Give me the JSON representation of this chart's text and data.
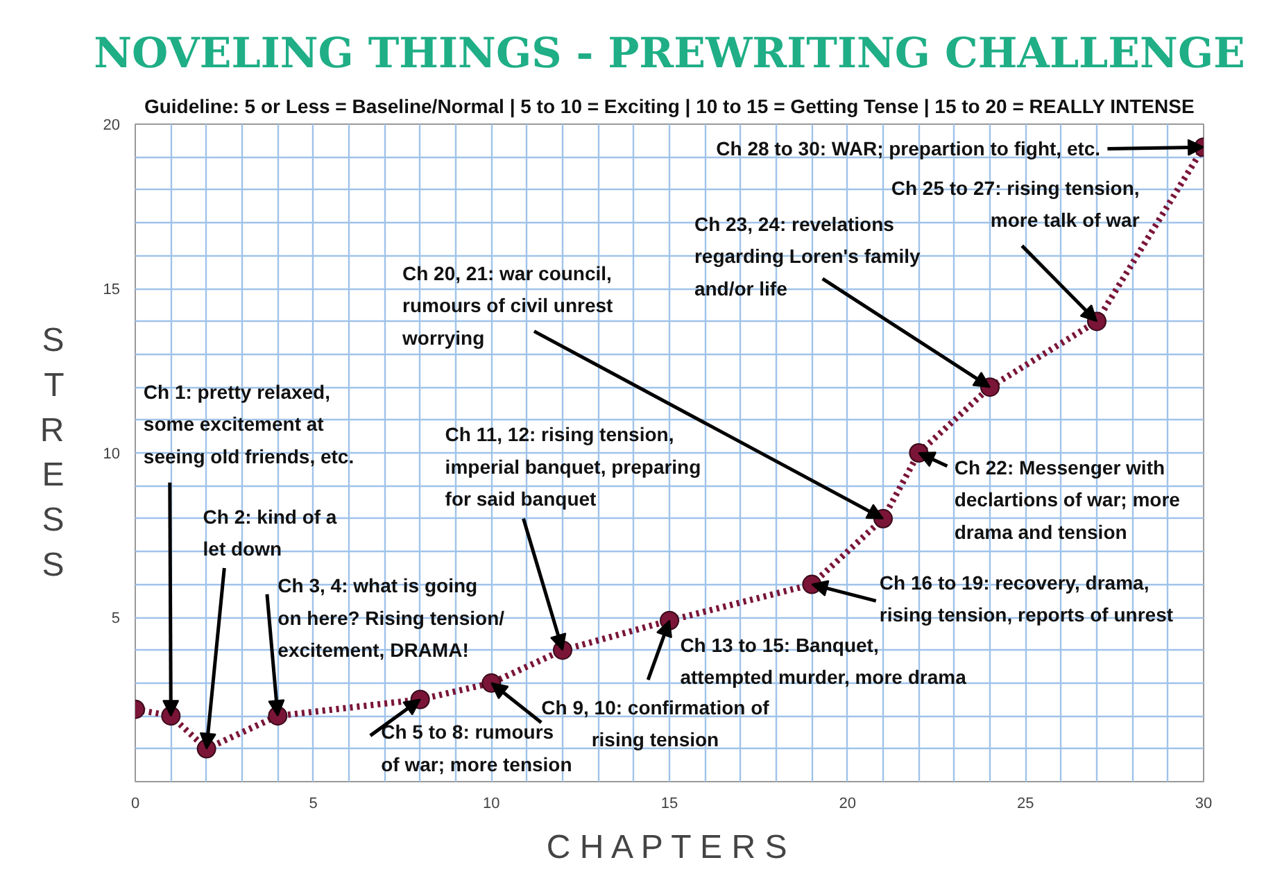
{
  "chart_data": {
    "type": "line",
    "title": "NOVELING THINGS - PREWRITING CHALLENGE",
    "subtitle": "Guideline: 5 or Less = Baseline/Normal | 5 to 10 = Exciting | 10 to 15 = Getting Tense | 15 to 20 = REALLY INTENSE",
    "xlabel": "C H A P T E R S",
    "ylabel": "STRESS",
    "series": [
      {
        "color": "#7a1538",
        "x": [
          0,
          1,
          2,
          4,
          8,
          10,
          12,
          15,
          19,
          21,
          22,
          24,
          27,
          30
        ],
        "values": [
          2.2,
          2,
          1,
          2,
          2.5,
          3,
          4,
          4.9,
          6,
          8,
          10,
          12,
          14,
          19.3
        ]
      }
    ],
    "marker": "circle",
    "line_style": "dotted",
    "grid": true,
    "xlim": [
      0,
      30
    ],
    "ylim": [
      0,
      20
    ],
    "xticks": [
      0,
      {
        "value": 1,
        "label": null
      },
      {
        "value": 2,
        "label": null
      },
      {
        "value": 3,
        "label": null
      },
      {
        "value": 4,
        "label": null
      },
      5,
      {
        "value": 6,
        "label": null
      },
      {
        "value": 7,
        "label": null
      },
      {
        "value": 8,
        "label": null
      },
      {
        "value": 9,
        "label": null
      },
      10,
      {
        "value": 11,
        "label": null
      },
      {
        "value": 12,
        "label": null
      },
      {
        "value": 13,
        "label": null
      },
      {
        "value": 14,
        "label": null
      },
      15,
      {
        "value": 16,
        "label": null
      },
      {
        "value": 17,
        "label": null
      },
      {
        "value": 18,
        "label": null
      },
      {
        "value": 19,
        "label": null
      },
      20,
      {
        "value": 21,
        "label": null
      },
      {
        "value": 22,
        "label": null
      },
      {
        "value": 23,
        "label": null
      },
      {
        "value": 24,
        "label": null
      },
      25,
      {
        "value": 26,
        "label": null
      },
      {
        "value": 27,
        "label": null
      },
      {
        "value": 28,
        "label": null
      },
      {
        "value": 29,
        "label": null
      },
      30
    ],
    "yticks": [
      {
        "value": 1,
        "label": null
      },
      {
        "value": 2,
        "label": null
      },
      {
        "value": 3,
        "label": null
      },
      {
        "value": 4,
        "label": null
      },
      5,
      {
        "value": 6,
        "label": null
      },
      {
        "value": 7,
        "label": null
      },
      {
        "value": 8,
        "label": null
      },
      {
        "value": 9,
        "label": null
      },
      10,
      {
        "value": 11,
        "label": null
      },
      {
        "value": 12,
        "label": null
      },
      {
        "value": 13,
        "label": null
      },
      {
        "value": 14,
        "label": null
      },
      15,
      {
        "value": 16,
        "label": null
      },
      {
        "value": 17,
        "label": null
      },
      {
        "value": 18,
        "label": null
      },
      {
        "value": 19,
        "label": null
      },
      20
    ],
    "annotations": [
      {
        "text": "Ch 1: pretty relaxed,\nsome excitement at\nseeing old friends, etc.",
        "x": 1,
        "y": 2
      },
      {
        "text": "Ch 2: kind of a\nlet down",
        "x": 2,
        "y": 1
      },
      {
        "text": "Ch 3, 4: what is going\non here? Rising tension/\nexcitement, DRAMA!",
        "x": 4,
        "y": 2
      },
      {
        "text": "Ch 5 to 8: rumours\nof war; more tension",
        "x": 8,
        "y": 2.5
      },
      {
        "text": "Ch 9, 10: confirmation of\nrising tension",
        "x": 10,
        "y": 3
      },
      {
        "text": "Ch 11, 12: rising tension,\nimperial banquet, preparing\nfor said banquet",
        "x": 12,
        "y": 4
      },
      {
        "text": "Ch 13 to 15: Banquet,\nattempted murder, more drama",
        "x": 15,
        "y": 4.9
      },
      {
        "text": "Ch 16 to 19: recovery, drama,\nrising tension, reports of unrest",
        "x": 19,
        "y": 6
      },
      {
        "text": "Ch 20, 21: war council,\nrumours of civil unrest\nworrying",
        "x": 21,
        "y": 8
      },
      {
        "text": "Ch 22: Messenger with\ndeclartions of war; more\ndrama and tension",
        "x": 22,
        "y": 10
      },
      {
        "text": "Ch 23, 24: revelations\nregarding Loren's family\nand/or life",
        "x": 24,
        "y": 12
      },
      {
        "text": "Ch 25 to 27: rising tension,\nmore talk of war",
        "x": 27,
        "y": 14
      },
      {
        "text": "Ch 28 to 30: WAR; prepartion to fight, etc.",
        "x": 30,
        "y": 19.3
      }
    ]
  }
}
